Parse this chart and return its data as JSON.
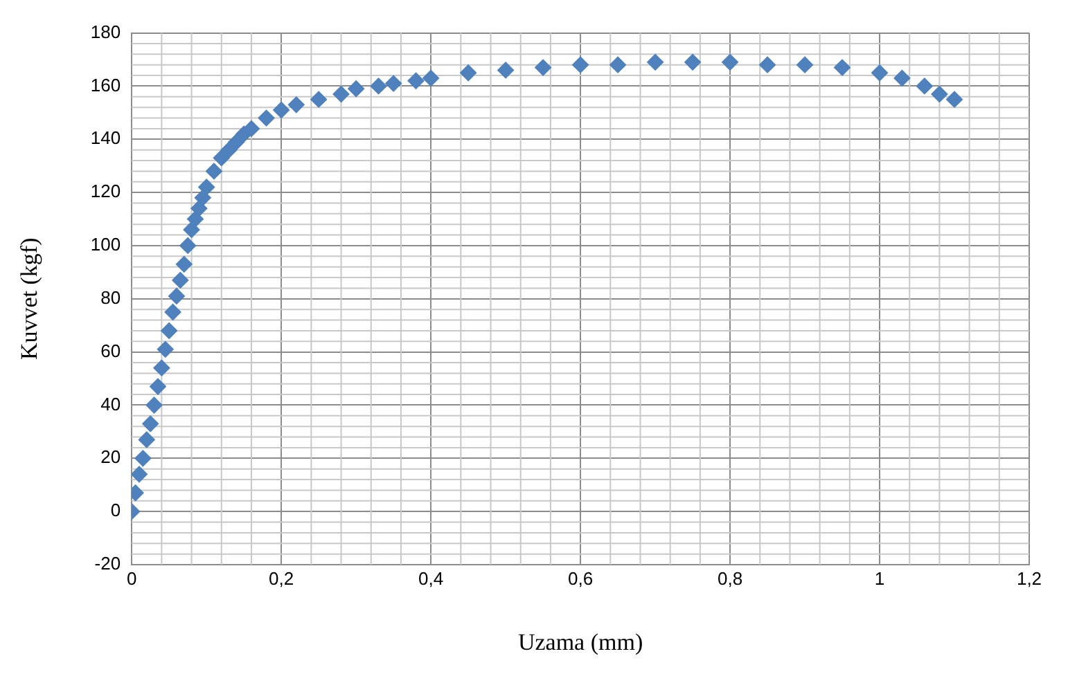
{
  "chart_data": {
    "type": "scatter",
    "xlabel": "Uzama (mm)",
    "ylabel": "Kuvvet (kgf)",
    "marker": "diamond",
    "grid": true,
    "legend": false,
    "xlim": [
      0,
      1.2
    ],
    "ylim": [
      -20,
      180
    ],
    "xticks": [
      0,
      {
        "value": 0.2,
        "label": "0,2"
      },
      {
        "value": 0.4,
        "label": "0,4"
      },
      {
        "value": 0.6,
        "label": "0,6"
      },
      {
        "value": 0.8,
        "label": "0,8"
      },
      1,
      {
        "value": 1.2,
        "label": "1,2"
      }
    ],
    "yticks": [
      -20,
      0,
      20,
      40,
      60,
      80,
      100,
      120,
      140,
      160,
      180
    ],
    "series": [
      {
        "color": "#4f81bd",
        "x": [
          0,
          0.005,
          0.01,
          0.015,
          0.02,
          0.025,
          0.03,
          0.035,
          0.04,
          0.045,
          0.05,
          0.055,
          0.06,
          0.065,
          0.07,
          0.075,
          0.08,
          0.085,
          0.09,
          0.095,
          0.1,
          0.11,
          0.12,
          0.13,
          0.14,
          0.15,
          0.16,
          0.18,
          0.2,
          0.22,
          0.25,
          0.28,
          0.3,
          0.33,
          0.35,
          0.38,
          0.4,
          0.45,
          0.5,
          0.55,
          0.6,
          0.65,
          0.7,
          0.75,
          0.8,
          0.85,
          0.9,
          0.95,
          1.0,
          1.03,
          1.06,
          1.08,
          1.1
        ],
        "values": [
          0,
          7,
          14,
          20,
          27,
          33,
          40,
          47,
          54,
          61,
          68,
          75,
          81,
          87,
          93,
          100,
          106,
          110,
          114,
          118,
          122,
          128,
          133,
          136,
          139,
          142,
          144,
          148,
          151,
          153,
          155,
          157,
          159,
          160,
          161,
          162,
          163,
          165,
          166,
          167,
          168,
          168,
          169,
          169,
          169,
          168,
          168,
          167,
          165,
          163,
          160,
          157,
          155
        ]
      }
    ]
  }
}
